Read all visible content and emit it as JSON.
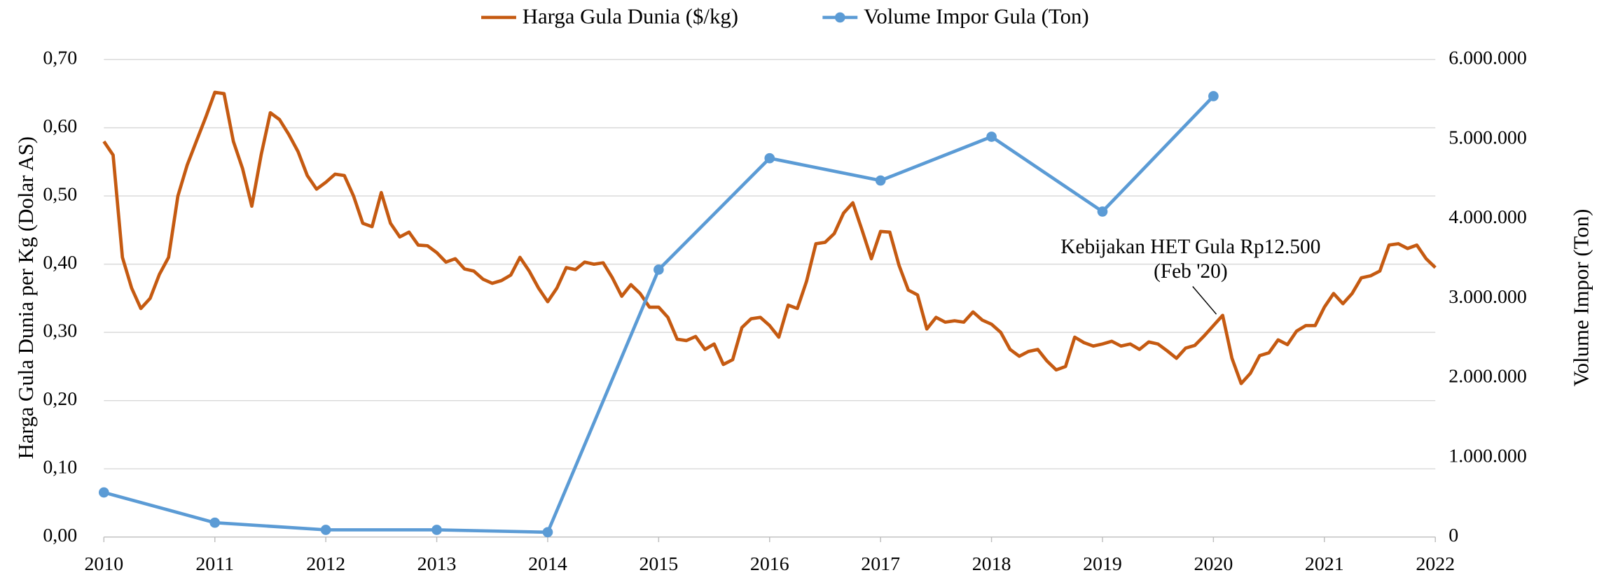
{
  "chart_data": {
    "type": "line",
    "ylabel": "Harga Gula Dunia per Kg (Dolar AS)",
    "y2label": "Volume Impor (Ton)",
    "xlim": [
      2010,
      2022
    ],
    "xticks": [
      2010,
      2011,
      2012,
      2013,
      2014,
      2015,
      2016,
      2017,
      2018,
      2019,
      2020,
      2021,
      2022
    ],
    "ylim": [
      0,
      0.7
    ],
    "yticks": [
      {
        "value": 0,
        "label": "0,00"
      },
      {
        "value": 0.1,
        "label": "0,10"
      },
      {
        "value": 0.2,
        "label": "0,20"
      },
      {
        "value": 0.3,
        "label": "0,30"
      },
      {
        "value": 0.4,
        "label": "0,40"
      },
      {
        "value": 0.5,
        "label": "0,50"
      },
      {
        "value": 0.6,
        "label": "0,60"
      },
      {
        "value": 0.7,
        "label": "0,70"
      }
    ],
    "y2lim": [
      0,
      6000000
    ],
    "y2ticks": [
      0,
      {
        "value": 1000000,
        "label": "1.000.000"
      },
      {
        "value": 2000000,
        "label": "2.000.000"
      },
      {
        "value": 3000000,
        "label": "3.000.000"
      },
      {
        "value": 4000000,
        "label": "4.000.000"
      },
      {
        "value": 5000000,
        "label": "5.000.000"
      },
      {
        "value": 6000000,
        "label": "6.000.000"
      }
    ],
    "grid": true,
    "legend": "top",
    "annotation": {
      "text": [
        "Kebijakan HET Gula Rp12.500",
        "(Feb '20)"
      ],
      "x": 2020.083,
      "y": 0.325
    },
    "series": [
      {
        "name": "Harga Gula Dunia ($/kg)",
        "color": "#c55a11",
        "axis": "y",
        "x": [
          2010,
          2010.083,
          2010.167,
          2010.25,
          2010.333,
          2010.417,
          2010.5,
          2010.583,
          2010.667,
          2010.75,
          2010.833,
          2010.917,
          2011,
          2011.083,
          2011.167,
          2011.25,
          2011.333,
          2011.417,
          2011.5,
          2011.583,
          2011.667,
          2011.75,
          2011.833,
          2011.917,
          2012,
          2012.083,
          2012.167,
          2012.25,
          2012.333,
          2012.417,
          2012.5,
          2012.583,
          2012.667,
          2012.75,
          2012.833,
          2012.917,
          2013,
          2013.083,
          2013.167,
          2013.25,
          2013.333,
          2013.417,
          2013.5,
          2013.583,
          2013.667,
          2013.75,
          2013.833,
          2013.917,
          2014,
          2014.083,
          2014.167,
          2014.25,
          2014.333,
          2014.417,
          2014.5,
          2014.583,
          2014.667,
          2014.75,
          2014.833,
          2014.917,
          2015,
          2015.083,
          2015.167,
          2015.25,
          2015.333,
          2015.417,
          2015.5,
          2015.583,
          2015.667,
          2015.75,
          2015.833,
          2015.917,
          2016,
          2016.083,
          2016.167,
          2016.25,
          2016.333,
          2016.417,
          2016.5,
          2016.583,
          2016.667,
          2016.75,
          2016.833,
          2016.917,
          2017,
          2017.083,
          2017.167,
          2017.25,
          2017.333,
          2017.417,
          2017.5,
          2017.583,
          2017.667,
          2017.75,
          2017.833,
          2017.917,
          2018,
          2018.083,
          2018.167,
          2018.25,
          2018.333,
          2018.417,
          2018.5,
          2018.583,
          2018.667,
          2018.75,
          2018.833,
          2018.917,
          2019,
          2019.083,
          2019.167,
          2019.25,
          2019.333,
          2019.417,
          2019.5,
          2019.583,
          2019.667,
          2019.75,
          2019.833,
          2019.917,
          2020,
          2020.083,
          2020.167,
          2020.25,
          2020.333,
          2020.417,
          2020.5,
          2020.583,
          2020.667,
          2020.75,
          2020.833,
          2020.917,
          2021,
          2021.083,
          2021.167,
          2021.25,
          2021.333,
          2021.417,
          2021.5,
          2021.583,
          2021.667,
          2021.75,
          2021.833,
          2021.917,
          2022
        ],
        "values": [
          0.58,
          0.56,
          0.41,
          0.365,
          0.335,
          0.35,
          0.385,
          0.41,
          0.5,
          0.545,
          0.58,
          0.615,
          0.652,
          0.65,
          0.58,
          0.54,
          0.485,
          0.56,
          0.622,
          0.612,
          0.59,
          0.565,
          0.53,
          0.51,
          0.52,
          0.532,
          0.53,
          0.5,
          0.46,
          0.455,
          0.505,
          0.46,
          0.44,
          0.447,
          0.428,
          0.427,
          0.417,
          0.403,
          0.408,
          0.393,
          0.39,
          0.378,
          0.372,
          0.376,
          0.384,
          0.41,
          0.39,
          0.365,
          0.345,
          0.365,
          0.395,
          0.392,
          0.403,
          0.4,
          0.402,
          0.38,
          0.353,
          0.37,
          0.357,
          0.337,
          0.337,
          0.322,
          0.29,
          0.288,
          0.294,
          0.275,
          0.283,
          0.253,
          0.26,
          0.307,
          0.32,
          0.322,
          0.31,
          0.293,
          0.34,
          0.335,
          0.375,
          0.43,
          0.432,
          0.445,
          0.475,
          0.49,
          0.45,
          0.408,
          0.448,
          0.447,
          0.398,
          0.362,
          0.355,
          0.305,
          0.322,
          0.315,
          0.317,
          0.315,
          0.33,
          0.318,
          0.312,
          0.3,
          0.275,
          0.265,
          0.272,
          0.275,
          0.258,
          0.245,
          0.25,
          0.293,
          0.285,
          0.28,
          0.283,
          0.287,
          0.28,
          0.283,
          0.275,
          0.286,
          0.283,
          0.273,
          0.262,
          0.277,
          0.281,
          0.295,
          0.31,
          0.325,
          0.262,
          0.225,
          0.24,
          0.266,
          0.27,
          0.289,
          0.282,
          0.302,
          0.31,
          0.31,
          0.337,
          0.357,
          0.342,
          0.357,
          0.38,
          0.383,
          0.39,
          0.428,
          0.43,
          0.423,
          0.428,
          0.408,
          0.395
        ]
      },
      {
        "name": "Volume Impor Gula (Ton)",
        "color": "#5b9bd5",
        "axis": "y2",
        "markers": true,
        "x": [
          2010,
          2011,
          2012,
          2013,
          2014,
          2015,
          2016,
          2017,
          2018,
          2019,
          2020
        ],
        "values": [
          560000,
          180000,
          90000,
          90000,
          60000,
          3360000,
          4760000,
          4480000,
          5030000,
          4090000,
          5540000
        ]
      }
    ]
  }
}
